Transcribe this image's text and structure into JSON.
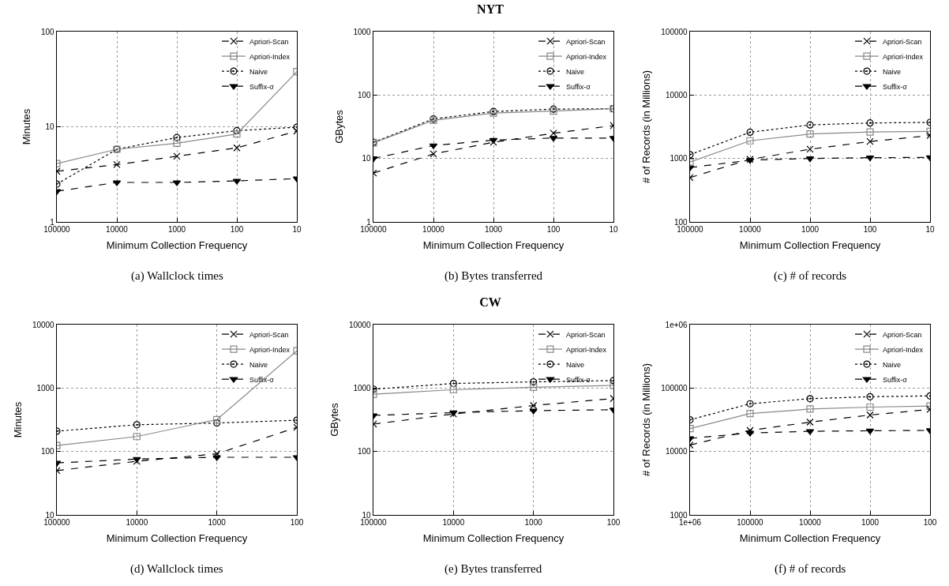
{
  "chart_data": [
    {
      "type": "line",
      "xlabel": "Minimum Collection Frequency",
      "ylabel": "Minutes",
      "annotations": [
        "(a) Wallclock times"
      ],
      "log": "xy",
      "grid": true,
      "legend": "top right",
      "x": [
        100000,
        10000,
        1000,
        100,
        10
      ],
      "xlim": [
        100000,
        10
      ],
      "xticks": [
        100000,
        10000,
        1000,
        100,
        10
      ],
      "ylim": [
        1,
        100
      ],
      "yticks": [
        1,
        10,
        100
      ],
      "series": [
        {
          "name": "Apriori-Scan",
          "color": "#000000",
          "marker": "cross",
          "line_style": "dashed",
          "values": [
            3.4,
            4.0,
            4.9,
            6.0,
            9.0
          ]
        },
        {
          "name": "Apriori-Index",
          "color": "#888888",
          "marker": "square",
          "line_style": "solid",
          "values": [
            4.1,
            5.8,
            6.7,
            8.4,
            38
          ]
        },
        {
          "name": "Naive",
          "color": "#000000",
          "marker": "circle",
          "line_style": "dotted",
          "values": [
            2.5,
            5.8,
            7.7,
            9.1,
            9.9
          ]
        },
        {
          "name": "Suffix-σ",
          "color": "#000000",
          "marker": "triangle",
          "line_style": "dashed",
          "values": [
            2.1,
            2.6,
            2.6,
            2.7,
            2.85
          ]
        }
      ]
    },
    {
      "type": "line",
      "title": "NYT",
      "xlabel": "Minimum Collection Frequency",
      "ylabel": "GBytes",
      "annotations": [
        "(b) Bytes transferred"
      ],
      "log": "xy",
      "grid": true,
      "legend": "top right",
      "x": [
        100000,
        10000,
        1000,
        100,
        10
      ],
      "xlim": [
        100000,
        10
      ],
      "xticks": [
        100000,
        10000,
        1000,
        100,
        10
      ],
      "ylim": [
        1,
        1000
      ],
      "yticks": [
        1,
        10,
        100,
        1000
      ],
      "series": [
        {
          "name": "Apriori-Scan",
          "color": "#000000",
          "marker": "cross",
          "line_style": "dashed",
          "values": [
            5.9,
            11.8,
            18,
            25,
            33
          ]
        },
        {
          "name": "Apriori-Index",
          "color": "#888888",
          "marker": "square",
          "line_style": "solid",
          "values": [
            17.6,
            40,
            52,
            56,
            61
          ]
        },
        {
          "name": "Naive",
          "color": "#000000",
          "marker": "circle",
          "line_style": "dotted",
          "values": [
            18,
            42,
            55,
            60,
            61
          ]
        },
        {
          "name": "Suffix-σ",
          "color": "#000000",
          "marker": "triangle",
          "line_style": "dashed",
          "values": [
            10,
            16,
            19.5,
            21,
            21
          ]
        }
      ]
    },
    {
      "type": "line",
      "xlabel": "Minimum Collection Frequency",
      "ylabel": "# of Records (in Millions)",
      "annotations": [
        "(c) # of records"
      ],
      "log": "xy",
      "grid": true,
      "legend": "top right",
      "x": [
        100000,
        10000,
        1000,
        100,
        10
      ],
      "xlim": [
        100000,
        10
      ],
      "xticks": [
        100000,
        10000,
        1000,
        100,
        10
      ],
      "ylim": [
        100,
        100000
      ],
      "yticks": [
        100,
        1000,
        10000,
        100000
      ],
      "series": [
        {
          "name": "Apriori-Scan",
          "color": "#000000",
          "marker": "cross",
          "line_style": "dashed",
          "values": [
            500,
            970,
            1400,
            1850,
            2300
          ]
        },
        {
          "name": "Apriori-Index",
          "color": "#888888",
          "marker": "square",
          "line_style": "solid",
          "values": [
            880,
            1900,
            2430,
            2620,
            2670
          ]
        },
        {
          "name": "Naive",
          "color": "#000000",
          "marker": "circle",
          "line_style": "dotted",
          "values": [
            1150,
            2590,
            3380,
            3630,
            3700
          ]
        },
        {
          "name": "Suffix-σ",
          "color": "#000000",
          "marker": "triangle",
          "line_style": "dashed",
          "values": [
            720,
            940,
            1000,
            1030,
            1040
          ]
        }
      ]
    },
    {
      "type": "line",
      "xlabel": "Minimum Collection Frequency",
      "ylabel": "Minutes",
      "annotations": [
        "(d) Wallclock times"
      ],
      "log": "xy",
      "grid": true,
      "legend": "top right",
      "x": [
        100000,
        10000,
        1000,
        100
      ],
      "xlim": [
        100000,
        100
      ],
      "xticks": [
        100000,
        10000,
        1000,
        100
      ],
      "ylim": [
        10,
        10000
      ],
      "yticks": [
        10,
        100,
        1000,
        10000
      ],
      "series": [
        {
          "name": "Apriori-Scan",
          "color": "#000000",
          "marker": "cross",
          "line_style": "dashed",
          "values": [
            50,
            70,
            92,
            240
          ]
        },
        {
          "name": "Apriori-Index",
          "color": "#888888",
          "marker": "square",
          "line_style": "solid",
          "values": [
            124,
            172,
            318,
            3860
          ]
        },
        {
          "name": "Naive",
          "color": "#000000",
          "marker": "circle",
          "line_style": "dotted",
          "values": [
            209,
            264,
            281,
            311
          ]
        },
        {
          "name": "Suffix-σ",
          "color": "#000000",
          "marker": "triangle",
          "line_style": "dashed",
          "values": [
            66,
            76,
            81,
            81
          ]
        }
      ]
    },
    {
      "type": "line",
      "title": "CW",
      "xlabel": "Minimum Collection Frequency",
      "ylabel": "GBytes",
      "annotations": [
        "(e) Bytes transferred"
      ],
      "log": "xy",
      "grid": true,
      "legend": "top right",
      "x": [
        100000,
        10000,
        1000,
        100
      ],
      "xlim": [
        100000,
        100
      ],
      "xticks": [
        100000,
        10000,
        1000,
        100
      ],
      "ylim": [
        10,
        10000
      ],
      "yticks": [
        10,
        100,
        1000,
        10000
      ],
      "series": [
        {
          "name": "Apriori-Scan",
          "color": "#000000",
          "marker": "cross",
          "line_style": "dashed",
          "values": [
            270,
            390,
            530,
            685
          ]
        },
        {
          "name": "Apriori-Index",
          "color": "#888888",
          "marker": "square",
          "line_style": "solid",
          "values": [
            800,
            940,
            1030,
            1100
          ]
        },
        {
          "name": "Naive",
          "color": "#000000",
          "marker": "circle",
          "line_style": "dotted",
          "values": [
            960,
            1180,
            1250,
            1310
          ]
        },
        {
          "name": "Suffix-σ",
          "color": "#000000",
          "marker": "triangle",
          "line_style": "dashed",
          "values": [
            370,
            410,
            440,
            455
          ]
        }
      ]
    },
    {
      "type": "line",
      "xlabel": "Minimum Collection Frequency",
      "ylabel": "# of Records (in Millions)",
      "annotations": [
        "(f) # of records"
      ],
      "log": "xy",
      "grid": true,
      "legend": "top right",
      "x": [
        1000000,
        100000,
        10000,
        1000,
        100
      ],
      "xlim": [
        1000000,
        100
      ],
      "xticks": [
        {
          "value": 1000000,
          "label": "1e+06"
        },
        100000,
        10000,
        1000,
        100
      ],
      "ylim": [
        1000,
        1000000
      ],
      "yticks": [
        1000,
        10000,
        100000,
        {
          "value": 1000000,
          "label": "1e+06"
        }
      ],
      "series": [
        {
          "name": "Apriori-Scan",
          "color": "#000000",
          "marker": "cross",
          "line_style": "dashed",
          "values": [
            12600,
            21500,
            29000,
            37600,
            46100
          ]
        },
        {
          "name": "Apriori-Index",
          "color": "#888888",
          "marker": "square",
          "line_style": "solid",
          "values": [
            23000,
            39600,
            46600,
            50000,
            52100
          ]
        },
        {
          "name": "Naive",
          "color": "#000000",
          "marker": "circle",
          "line_style": "dotted",
          "values": [
            31600,
            56500,
            68000,
            73000,
            75200
          ]
        },
        {
          "name": "Suffix-σ",
          "color": "#000000",
          "marker": "triangle",
          "line_style": "dashed",
          "values": [
            16100,
            19600,
            20800,
            21200,
            21500
          ]
        }
      ]
    }
  ]
}
